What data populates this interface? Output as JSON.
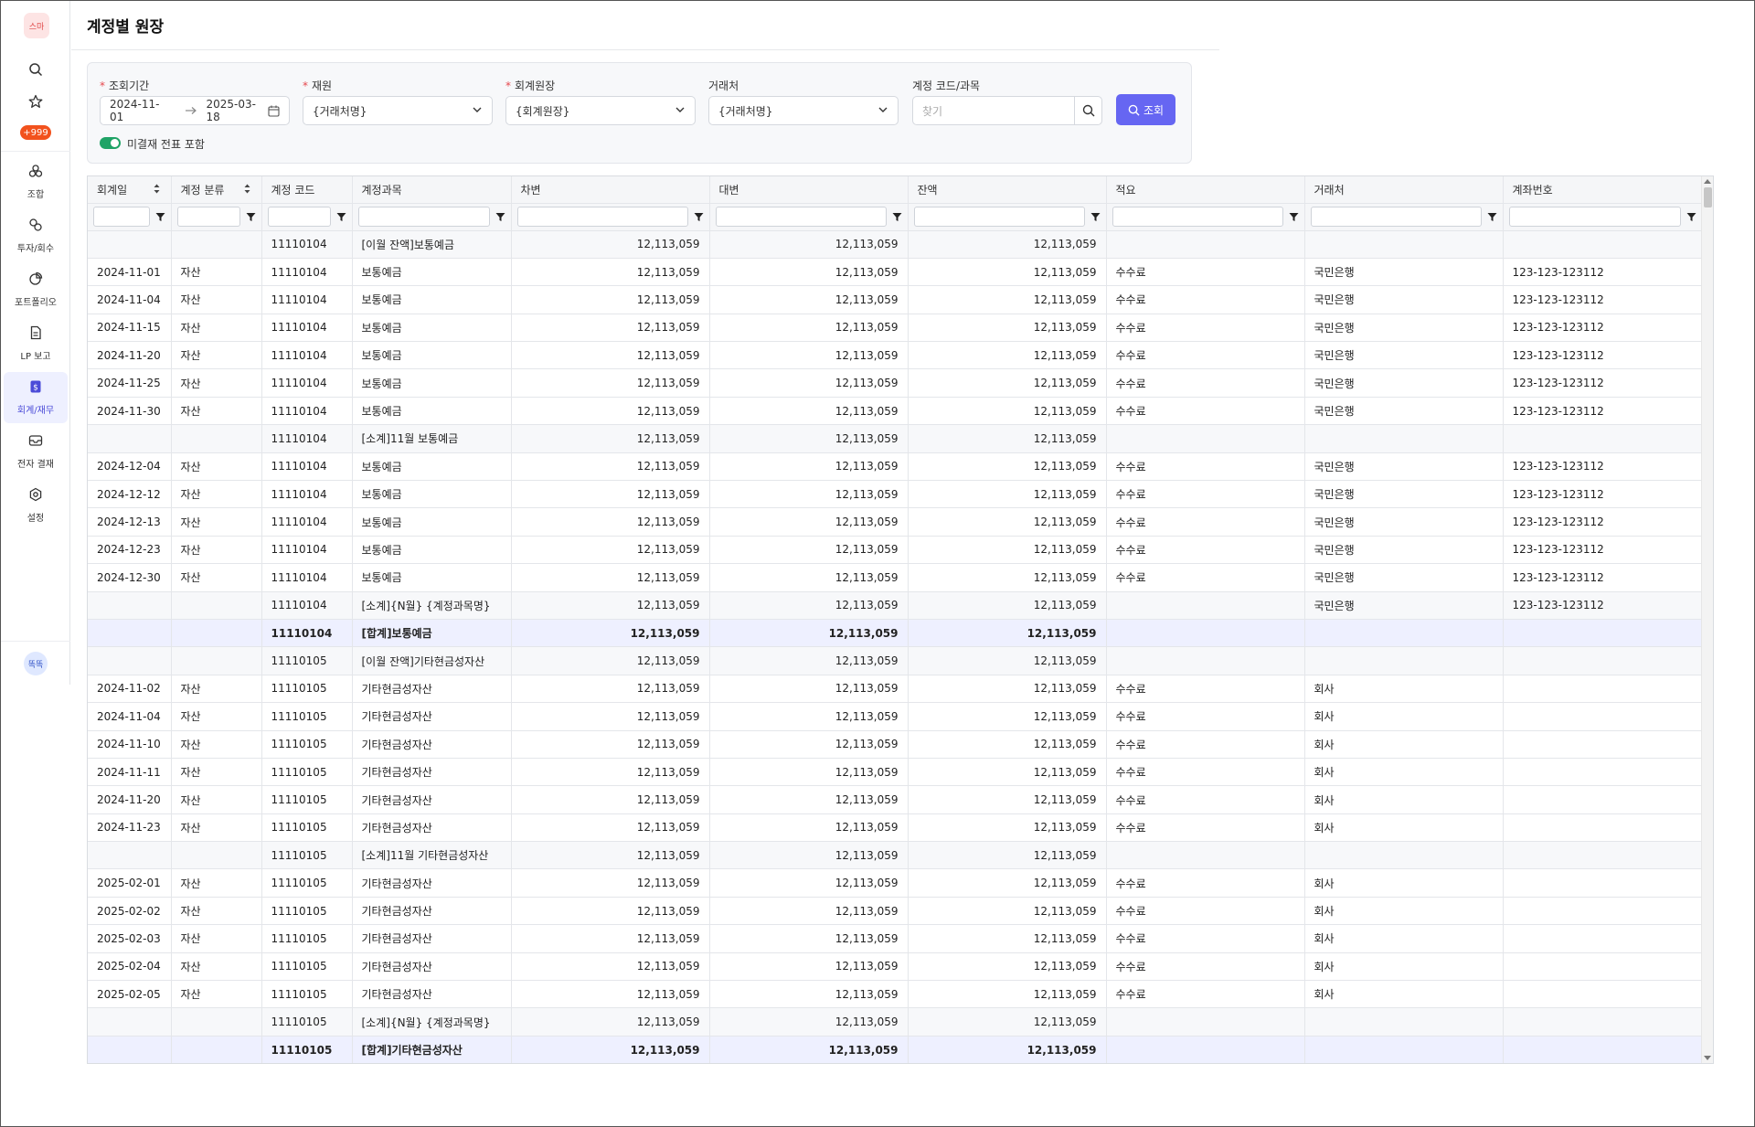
{
  "sidebar": {
    "logo": "스마",
    "badge": "+999",
    "items": [
      {
        "label": "조합",
        "icon": "union-icon"
      },
      {
        "label": "투자/회수",
        "icon": "investment-icon"
      },
      {
        "label": "포트폴리오",
        "icon": "pie-chart-icon"
      },
      {
        "label": "LP 보고",
        "icon": "document-icon"
      },
      {
        "label": "회계/재무",
        "icon": "finance-icon"
      },
      {
        "label": "전자 결재",
        "icon": "mail-icon"
      },
      {
        "label": "설정",
        "icon": "gear-icon"
      }
    ],
    "active_index": 4,
    "avatar": "똑똑"
  },
  "page": {
    "title": "계정별 원장"
  },
  "filters": {
    "period_label": "조회기간",
    "date_from": "2024-11-01",
    "date_to": "2025-03-18",
    "fund_label": "재원",
    "fund_value": "{거래처명}",
    "ledger_label": "회계원장",
    "ledger_value": "{회계원장}",
    "vendor_label": "거래처",
    "vendor_value": "{거래처명}",
    "account_label": "계정 코드/과목",
    "account_placeholder": "찾기",
    "query_button": "조회",
    "include_unapproved_label": "미결재 전표 포함",
    "include_unapproved": true
  },
  "table": {
    "columns": [
      "회계일",
      "계정 분류",
      "계정 코드",
      "계정과목",
      "차변",
      "대변",
      "잔액",
      "적요",
      "거래처",
      "계좌번호"
    ],
    "rows": [
      {
        "type": "sub",
        "cells": [
          "",
          "",
          "11110104",
          "[이월 잔액]보통예금",
          "12,113,059",
          "12,113,059",
          "12,113,059",
          "",
          "",
          ""
        ]
      },
      {
        "type": "row",
        "cells": [
          "2024-11-01",
          "자산",
          "11110104",
          "보통예금",
          "12,113,059",
          "12,113,059",
          "12,113,059",
          "수수료",
          "국민은행",
          "123-123-123112"
        ]
      },
      {
        "type": "row",
        "cells": [
          "2024-11-04",
          "자산",
          "11110104",
          "보통예금",
          "12,113,059",
          "12,113,059",
          "12,113,059",
          "수수료",
          "국민은행",
          "123-123-123112"
        ]
      },
      {
        "type": "row",
        "cells": [
          "2024-11-15",
          "자산",
          "11110104",
          "보통예금",
          "12,113,059",
          "12,113,059",
          "12,113,059",
          "수수료",
          "국민은행",
          "123-123-123112"
        ]
      },
      {
        "type": "row",
        "cells": [
          "2024-11-20",
          "자산",
          "11110104",
          "보통예금",
          "12,113,059",
          "12,113,059",
          "12,113,059",
          "수수료",
          "국민은행",
          "123-123-123112"
        ]
      },
      {
        "type": "row",
        "cells": [
          "2024-11-25",
          "자산",
          "11110104",
          "보통예금",
          "12,113,059",
          "12,113,059",
          "12,113,059",
          "수수료",
          "국민은행",
          "123-123-123112"
        ]
      },
      {
        "type": "row",
        "cells": [
          "2024-11-30",
          "자산",
          "11110104",
          "보통예금",
          "12,113,059",
          "12,113,059",
          "12,113,059",
          "수수료",
          "국민은행",
          "123-123-123112"
        ]
      },
      {
        "type": "sub",
        "cells": [
          "",
          "",
          "11110104",
          "[소계]11월 보통예금",
          "12,113,059",
          "12,113,059",
          "12,113,059",
          "",
          "",
          ""
        ]
      },
      {
        "type": "row",
        "cells": [
          "2024-12-04",
          "자산",
          "11110104",
          "보통예금",
          "12,113,059",
          "12,113,059",
          "12,113,059",
          "수수료",
          "국민은행",
          "123-123-123112"
        ]
      },
      {
        "type": "row",
        "cells": [
          "2024-12-12",
          "자산",
          "11110104",
          "보통예금",
          "12,113,059",
          "12,113,059",
          "12,113,059",
          "수수료",
          "국민은행",
          "123-123-123112"
        ]
      },
      {
        "type": "row",
        "cells": [
          "2024-12-13",
          "자산",
          "11110104",
          "보통예금",
          "12,113,059",
          "12,113,059",
          "12,113,059",
          "수수료",
          "국민은행",
          "123-123-123112"
        ]
      },
      {
        "type": "row",
        "cells": [
          "2024-12-23",
          "자산",
          "11110104",
          "보통예금",
          "12,113,059",
          "12,113,059",
          "12,113,059",
          "수수료",
          "국민은행",
          "123-123-123112"
        ]
      },
      {
        "type": "row",
        "cells": [
          "2024-12-30",
          "자산",
          "11110104",
          "보통예금",
          "12,113,059",
          "12,113,059",
          "12,113,059",
          "수수료",
          "국민은행",
          "123-123-123112"
        ]
      },
      {
        "type": "sub",
        "cells": [
          "",
          "",
          "11110104",
          "[소계]{N월} {계정과목명}",
          "12,113,059",
          "12,113,059",
          "12,113,059",
          "",
          "국민은행",
          "123-123-123112"
        ]
      },
      {
        "type": "tot",
        "cells": [
          "",
          "",
          "11110104",
          "[합계]보통예금",
          "12,113,059",
          "12,113,059",
          "12,113,059",
          "",
          "",
          ""
        ]
      },
      {
        "type": "sub",
        "cells": [
          "",
          "",
          "11110105",
          "[이월 잔액]기타현금성자산",
          "12,113,059",
          "12,113,059",
          "12,113,059",
          "",
          "",
          ""
        ]
      },
      {
        "type": "row",
        "cells": [
          "2024-11-02",
          "자산",
          "11110105",
          "기타현금성자산",
          "12,113,059",
          "12,113,059",
          "12,113,059",
          "수수료",
          "회사",
          ""
        ]
      },
      {
        "type": "row",
        "cells": [
          "2024-11-04",
          "자산",
          "11110105",
          "기타현금성자산",
          "12,113,059",
          "12,113,059",
          "12,113,059",
          "수수료",
          "회사",
          ""
        ]
      },
      {
        "type": "row",
        "cells": [
          "2024-11-10",
          "자산",
          "11110105",
          "기타현금성자산",
          "12,113,059",
          "12,113,059",
          "12,113,059",
          "수수료",
          "회사",
          ""
        ]
      },
      {
        "type": "row",
        "cells": [
          "2024-11-11",
          "자산",
          "11110105",
          "기타현금성자산",
          "12,113,059",
          "12,113,059",
          "12,113,059",
          "수수료",
          "회사",
          ""
        ]
      },
      {
        "type": "row",
        "cells": [
          "2024-11-20",
          "자산",
          "11110105",
          "기타현금성자산",
          "12,113,059",
          "12,113,059",
          "12,113,059",
          "수수료",
          "회사",
          ""
        ]
      },
      {
        "type": "row",
        "cells": [
          "2024-11-23",
          "자산",
          "11110105",
          "기타현금성자산",
          "12,113,059",
          "12,113,059",
          "12,113,059",
          "수수료",
          "회사",
          ""
        ]
      },
      {
        "type": "sub",
        "cells": [
          "",
          "",
          "11110105",
          "[소계]11월 기타현금성자산",
          "12,113,059",
          "12,113,059",
          "12,113,059",
          "",
          "",
          ""
        ]
      },
      {
        "type": "row",
        "cells": [
          "2025-02-01",
          "자산",
          "11110105",
          "기타현금성자산",
          "12,113,059",
          "12,113,059",
          "12,113,059",
          "수수료",
          "회사",
          ""
        ]
      },
      {
        "type": "row",
        "cells": [
          "2025-02-02",
          "자산",
          "11110105",
          "기타현금성자산",
          "12,113,059",
          "12,113,059",
          "12,113,059",
          "수수료",
          "회사",
          ""
        ]
      },
      {
        "type": "row",
        "cells": [
          "2025-02-03",
          "자산",
          "11110105",
          "기타현금성자산",
          "12,113,059",
          "12,113,059",
          "12,113,059",
          "수수료",
          "회사",
          ""
        ]
      },
      {
        "type": "row",
        "cells": [
          "2025-02-04",
          "자산",
          "11110105",
          "기타현금성자산",
          "12,113,059",
          "12,113,059",
          "12,113,059",
          "수수료",
          "회사",
          ""
        ]
      },
      {
        "type": "row",
        "cells": [
          "2025-02-05",
          "자산",
          "11110105",
          "기타현금성자산",
          "12,113,059",
          "12,113,059",
          "12,113,059",
          "수수료",
          "회사",
          ""
        ]
      },
      {
        "type": "sub",
        "cells": [
          "",
          "",
          "11110105",
          "[소계]{N월} {계정과목명}",
          "12,113,059",
          "12,113,059",
          "12,113,059",
          "",
          "",
          ""
        ]
      },
      {
        "type": "tot",
        "cells": [
          "",
          "",
          "11110105",
          "[합계]기타현금성자산",
          "12,113,059",
          "12,113,059",
          "12,113,059",
          "",
          "",
          ""
        ]
      }
    ]
  },
  "colors": {
    "accent": "#6666f2",
    "toggle_on": "#1fa366",
    "badge": "#f2521d",
    "total_row": "#eef0ff"
  }
}
